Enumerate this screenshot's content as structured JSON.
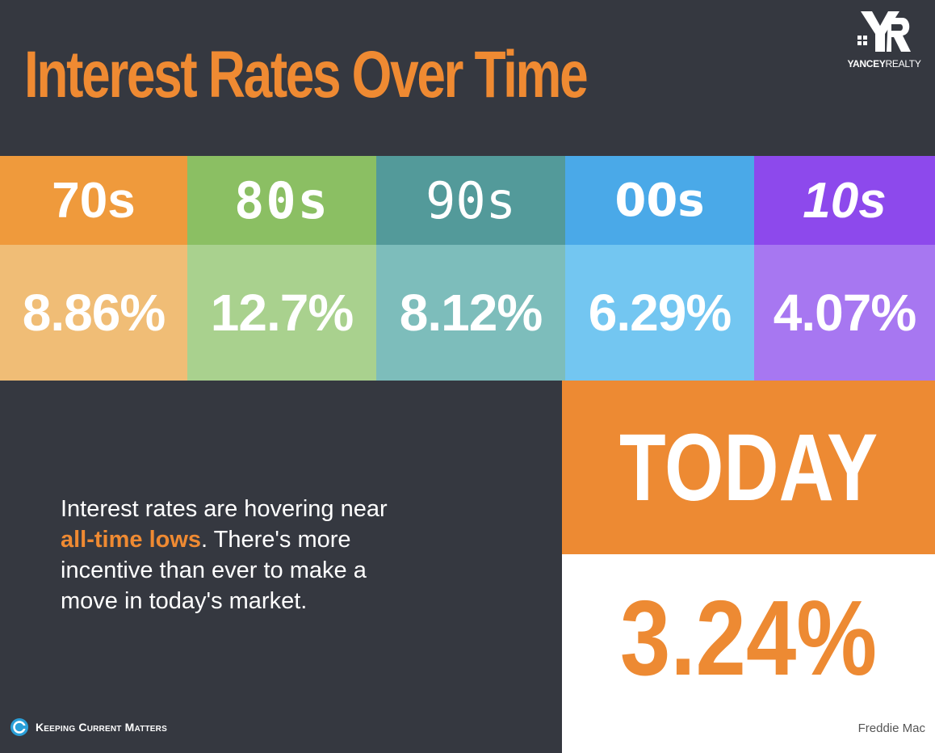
{
  "title": "Interest Rates Over Time",
  "logo": {
    "name_bold": "YANCEY",
    "name_thin": "REALTY"
  },
  "decades": [
    {
      "label": "70s",
      "rate": "8.86%",
      "header_color": "#ef9a3c",
      "rate_color": "#f0bd76"
    },
    {
      "label": "80s",
      "rate": "12.7%",
      "header_color": "#8bbf63",
      "rate_color": "#a9d18e"
    },
    {
      "label": "90s",
      "rate": "8.12%",
      "header_color": "#539a9a",
      "rate_color": "#7dbdbb"
    },
    {
      "label": "00s",
      "rate": "6.29%",
      "header_color": "#4aa9e8",
      "rate_color": "#73c6f1"
    },
    {
      "label": "10s",
      "rate": "4.07%",
      "header_color": "#8d49ec",
      "rate_color": "#a777f1"
    }
  ],
  "today": {
    "label": "TODAY",
    "rate": "3.24%",
    "source": "Freddie Mac"
  },
  "body": {
    "line1": "Interest rates are hovering near",
    "highlight": "all-time lows",
    "line2_rest": ". There's more",
    "line3": "incentive than ever to make a",
    "line4": "move in today's market."
  },
  "footer": {
    "brand": "Keeping Current Matters"
  },
  "colors": {
    "background": "#353840",
    "accent": "#ef8a32",
    "today_bg": "#ed8a33"
  }
}
